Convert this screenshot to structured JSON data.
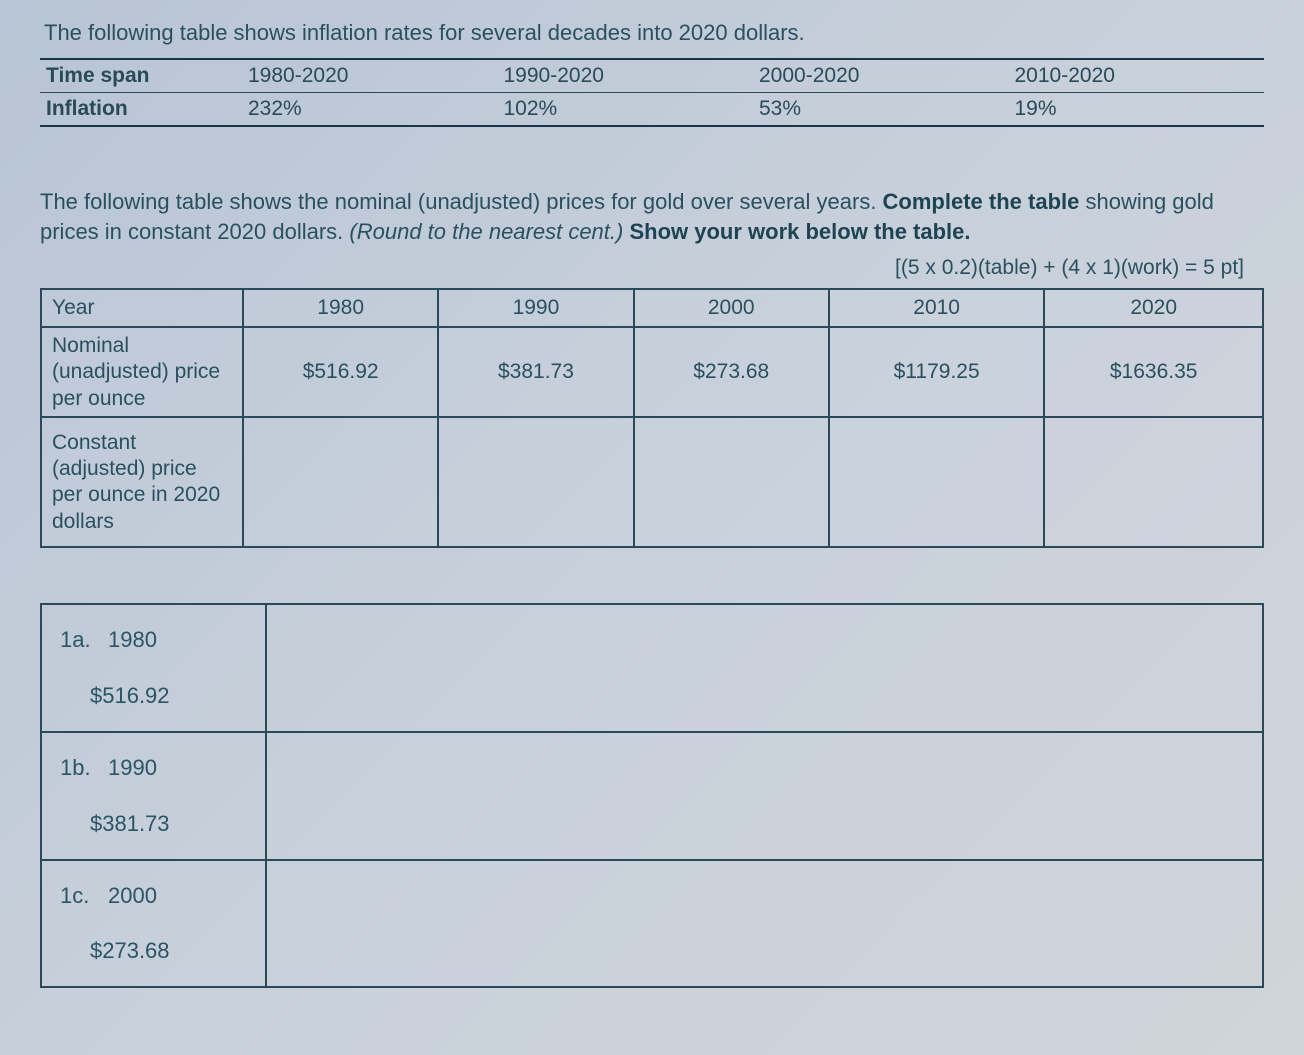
{
  "intro": "The following table shows inflation rates for several decades into 2020 dollars.",
  "inflation_table": {
    "row_labels": [
      "Time span",
      "Inflation"
    ],
    "columns": [
      "1980-2020",
      "1990-2020",
      "2000-2020",
      "2010-2020"
    ],
    "values": [
      "232%",
      "102%",
      "53%",
      "19%"
    ]
  },
  "instruction_parts": {
    "p1": "The following table shows the nominal (unadjusted) prices for gold over several years. ",
    "b1": "Complete the table",
    "p2": " showing gold prices in constant 2020 dollars. ",
    "i1": "(Round to the nearest cent.)",
    "p3": " ",
    "b2": "Show your work below the table."
  },
  "points": "[(5 x 0.2)(table) + (4 x 1)(work) = 5 pt]",
  "gold_table": {
    "header_label": "Year",
    "years": [
      "1980",
      "1990",
      "2000",
      "2010",
      "2020"
    ],
    "nominal_label": "Nominal (unadjusted) price per ounce",
    "nominal_values": [
      "$516.92",
      "$381.73",
      "$273.68",
      "$1179.25",
      "$1636.35"
    ],
    "constant_label": "Constant (adjusted) price per ounce in 2020 dollars",
    "constant_values": [
      "",
      "",
      "",
      "",
      ""
    ]
  },
  "work_rows": [
    {
      "num": "1a.",
      "year": "1980",
      "price": "$516.92"
    },
    {
      "num": "1b.",
      "year": "1990",
      "price": "$381.73"
    },
    {
      "num": "1c.",
      "year": "2000",
      "price": "$273.68"
    }
  ],
  "style": {
    "text_color": "#2a5060",
    "border_color": "#2a4a5a",
    "background_gradient": [
      "#b8c5d6",
      "#c8d0da",
      "#d0d5db"
    ],
    "body_fontsize": 22,
    "table_fontsize": 21
  }
}
